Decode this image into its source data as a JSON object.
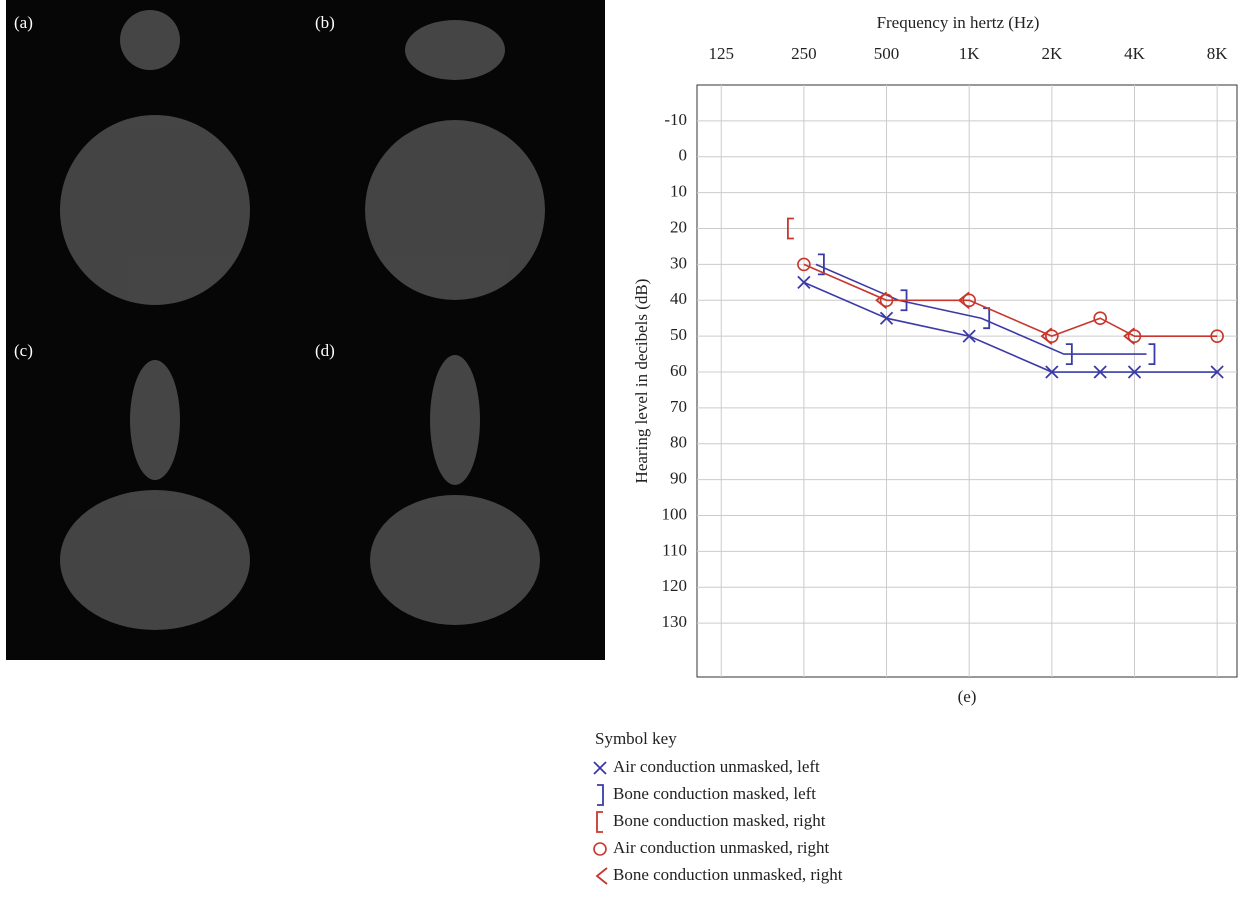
{
  "panels": [
    "(a)",
    "(b)",
    "(c)",
    "(d)"
  ],
  "chart_data": {
    "type": "line",
    "caption": "(e)",
    "xlabel": "Frequency in hertz (Hz)",
    "ylabel": "Hearing level in decibels (dB)",
    "xscale": "log",
    "y_inverted": true,
    "grid": true,
    "xlim": [
      102,
      9450
    ],
    "xticks": [
      125,
      250,
      500,
      {
        "value": 1000,
        "label": "1K"
      },
      {
        "value": 2000,
        "label": "2K"
      },
      {
        "value": 4000,
        "label": "4K"
      },
      {
        "value": 8000,
        "label": "8K"
      }
    ],
    "ylim": [
      -20,
      145
    ],
    "yticks": [
      -10,
      0,
      10,
      20,
      30,
      40,
      50,
      60,
      70,
      80,
      90,
      100,
      110,
      120,
      130
    ],
    "legend_title": "Symbol key",
    "series": [
      {
        "name": "Air conduction unmasked, left",
        "color": "#3b3ba8",
        "marker": "x",
        "line": true,
        "x": [
          250,
          500,
          1000,
          2000,
          3000,
          4000,
          8000
        ],
        "values": [
          35,
          45,
          50,
          60,
          60,
          60,
          60
        ]
      },
      {
        "name": "Bone conduction masked, left",
        "color": "#3b3ba8",
        "marker": "]",
        "line": true,
        "x": [
          250,
          500,
          1000,
          2000,
          4000
        ],
        "values": [
          30,
          40,
          45,
          55,
          55
        ]
      },
      {
        "name": "Bone conduction masked, right",
        "color": "#c8372d",
        "marker": "[",
        "line": false,
        "x": [
          250
        ],
        "values": [
          20
        ]
      },
      {
        "name": "Air conduction unmasked, right",
        "color": "#c8372d",
        "marker": "o",
        "line": true,
        "x": [
          250,
          500,
          1000,
          2000,
          3000,
          4000,
          8000
        ],
        "values": [
          30,
          40,
          40,
          50,
          45,
          50,
          50
        ]
      },
      {
        "name": "Bone conduction unmasked, right",
        "color": "#c8372d",
        "marker": "<",
        "line": false,
        "x": [
          500,
          1000,
          2000,
          4000
        ],
        "values": [
          40,
          40,
          50,
          50
        ]
      }
    ]
  }
}
